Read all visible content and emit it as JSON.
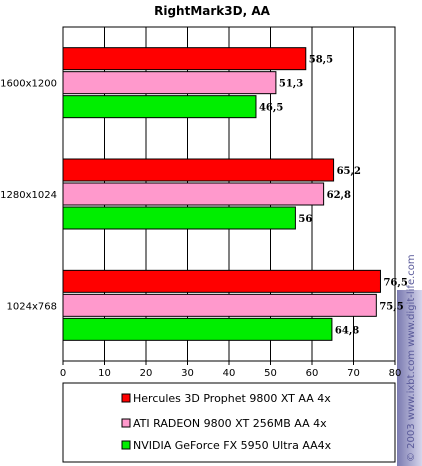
{
  "chart_data": {
    "type": "bar",
    "orientation": "horizontal",
    "title": "RightMark3D, AA",
    "categories": [
      "1600x1200",
      "1280x1024",
      "1024x768"
    ],
    "series": [
      {
        "name": "Hercules 3D Prophet 9800 XT AA 4x",
        "color": "#ff0000",
        "values": [
          58.5,
          65.2,
          76.5
        ],
        "labels": [
          "58,5",
          "65,2",
          "76,5"
        ]
      },
      {
        "name": "ATI RADEON 9800 XT 256MB AA 4x",
        "color": "#ff99cc",
        "values": [
          51.3,
          62.8,
          75.5
        ],
        "labels": [
          "51,3",
          "62,8",
          "75,5"
        ]
      },
      {
        "name": "NVIDIA GeForce FX 5950 Ultra AA4x",
        "color": "#00ee00",
        "values": [
          46.5,
          56,
          64.8
        ],
        "labels": [
          "46,5",
          "56",
          "64,8"
        ]
      }
    ],
    "xlim": [
      0,
      80
    ],
    "xticks": [
      "0",
      "10",
      "20",
      "30",
      "40",
      "50",
      "60",
      "70",
      "80"
    ],
    "grid": true,
    "legend_position": "bottom"
  },
  "watermark": "© 2003 www.ixbt.com  www.digit-life.com"
}
